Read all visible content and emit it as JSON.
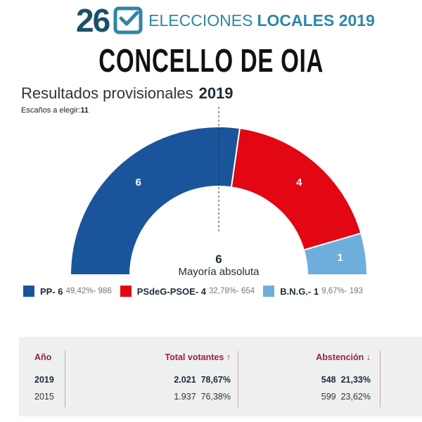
{
  "header": {
    "day": "26",
    "icon": "checkbox-icon",
    "title_light": "ELECCIONES",
    "title_bold": "LOCALES 2019",
    "colors": {
      "day": "#1a4f68",
      "accent": "#2f86a6"
    }
  },
  "page_title": "CONCELLO DE OIA",
  "subtitle": {
    "label": "Resultados provisionales",
    "year": "2019"
  },
  "seats": {
    "label": "Escaños a elegir:",
    "value": "11"
  },
  "chart_data": {
    "type": "pie",
    "subtype": "semicircle-parliament",
    "title": "Resultados provisionales 2019",
    "total_seats": 11,
    "majority": {
      "value": "6",
      "label": "Mayoría absoluta"
    },
    "series": [
      {
        "name": "PP",
        "seats": 6,
        "percent": "49,42%",
        "votes": "986",
        "color": "#1a559b"
      },
      {
        "name": "PSdeG-PSOE",
        "seats": 4,
        "percent": "32,78%",
        "votes": "654",
        "color": "#e30613"
      },
      {
        "name": "B.N.G.",
        "seats": 1,
        "percent": "9,67%",
        "votes": "193",
        "color": "#6eaedc"
      }
    ],
    "legend_position": "bottom"
  },
  "legend": [
    {
      "name": "PP- 6",
      "stats": "49,42%- 986"
    },
    {
      "name": "PSdeG-PSOE- 4",
      "stats": "32,78%- 654"
    },
    {
      "name": "B.N.G.- 1",
      "stats": "9,67%- 193"
    }
  ],
  "table": {
    "headers": {
      "year": "Año",
      "voters": "Total votantes ↑",
      "abstention": "Abstención ↓"
    },
    "rows": [
      {
        "year": "2019",
        "voters": "2.021",
        "voters_pct": "78,67%",
        "abst": "548",
        "abst_pct": "21,33%"
      },
      {
        "year": "2015",
        "voters": "1.937",
        "voters_pct": "76,38%",
        "abst": "599",
        "abst_pct": "23,62%"
      }
    ],
    "colors": {
      "header": "#9b2140",
      "panel": "#eef0f0"
    }
  }
}
